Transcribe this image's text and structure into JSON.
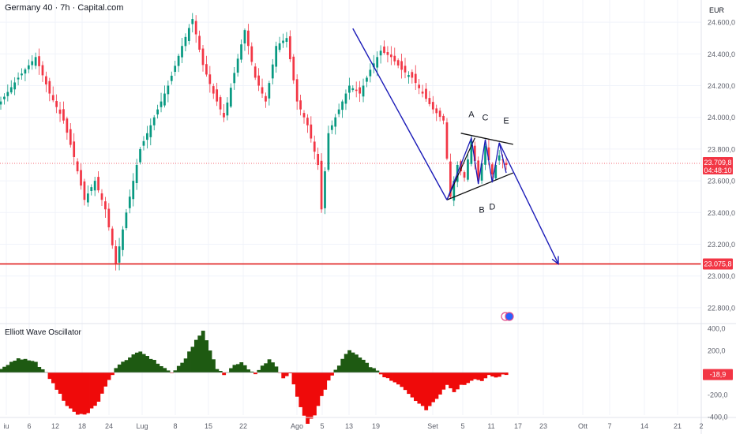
{
  "header": {
    "symbol_title": "Germany 40 · 7h · Capital.com"
  },
  "colors": {
    "up": "#089981",
    "down": "#f23645",
    "grid": "#f0f3fa",
    "text": "#131722",
    "axis_text": "#5d606b",
    "drawing": "#1c1cb8",
    "support": "#e01e1e",
    "osc_pos": "#1e5a12",
    "osc_neg": "#ef0a0a",
    "price_tag": "#f23645"
  },
  "chart_data": [
    {
      "type": "candlestick",
      "currency_label": "EUR",
      "y_ticks": [
        "24.600,0",
        "24.400,0",
        "24.200,0",
        "24.000,0",
        "23.800,0",
        "23.600,0",
        "23.400,0",
        "23.200,0",
        "23.000,0",
        "22.800,0"
      ],
      "y_tick_values": [
        24600,
        24400,
        24200,
        24000,
        23800,
        23600,
        23400,
        23200,
        23000,
        22800
      ],
      "ylim": [
        22710,
        24700
      ],
      "x_ticks": [
        "iu",
        "6",
        "12",
        "18",
        "24",
        "Lug",
        "8",
        "15",
        "22",
        "Ago",
        "5",
        "13",
        "19",
        "Set",
        "5",
        "11",
        "17",
        "23",
        "Ott",
        "7",
        "14",
        "21",
        "2"
      ],
      "last_price": {
        "value": 23709.8,
        "label": "23.709,8",
        "countdown": "04:48:10"
      },
      "support_level": {
        "value": 23075.8,
        "label": "23.075,8"
      },
      "wave_labels": [
        "A",
        "B",
        "C",
        "D",
        "E"
      ],
      "price_path_keypoints": [
        [
          0,
          24100
        ],
        [
          5,
          24250
        ],
        [
          10,
          24380
        ],
        [
          14,
          24150
        ],
        [
          18,
          23980
        ],
        [
          21,
          23750
        ],
        [
          24,
          23480
        ],
        [
          27,
          23600
        ],
        [
          30,
          23420
        ],
        [
          33,
          23080
        ],
        [
          36,
          23400
        ],
        [
          40,
          23800
        ],
        [
          44,
          24000
        ],
        [
          48,
          24200
        ],
        [
          52,
          24450
        ],
        [
          55,
          24620
        ],
        [
          58,
          24330
        ],
        [
          61,
          24150
        ],
        [
          64,
          24000
        ],
        [
          67,
          24280
        ],
        [
          70,
          24550
        ],
        [
          73,
          24250
        ],
        [
          76,
          24100
        ],
        [
          79,
          24450
        ],
        [
          82,
          24500
        ],
        [
          85,
          24100
        ],
        [
          88,
          23950
        ],
        [
          91,
          23700
        ],
        [
          92,
          23420
        ],
        [
          94,
          23900
        ],
        [
          97,
          24050
        ],
        [
          100,
          24200
        ],
        [
          103,
          24150
        ],
        [
          106,
          24300
        ],
        [
          109,
          24420
        ],
        [
          112,
          24380
        ],
        [
          115,
          24300
        ],
        [
          118,
          24250
        ],
        [
          121,
          24150
        ],
        [
          124,
          24050
        ],
        [
          127,
          23980
        ],
        [
          129,
          23500
        ],
        [
          131,
          23700
        ],
        [
          133,
          23620
        ],
        [
          135,
          23850
        ],
        [
          137,
          23600
        ],
        [
          139,
          23820
        ],
        [
          141,
          23640
        ],
        [
          143,
          23760
        ],
        [
          145,
          23700
        ]
      ],
      "candles_count": 146
    },
    {
      "type": "area",
      "title": "Elliott Wave Oscillator",
      "y_ticks": [
        "400,0",
        "200,0",
        "-200,0",
        "-400,0"
      ],
      "y_tick_values": [
        400,
        200,
        -200,
        -400
      ],
      "ylim": [
        -460,
        460
      ],
      "last_value": {
        "value": -18.9,
        "label": "-18,9"
      },
      "values_keypoints": [
        [
          0,
          30
        ],
        [
          5,
          130
        ],
        [
          10,
          90
        ],
        [
          13,
          -5
        ],
        [
          16,
          -150
        ],
        [
          19,
          -300
        ],
        [
          22,
          -380
        ],
        [
          25,
          -370
        ],
        [
          28,
          -260
        ],
        [
          31,
          -70
        ],
        [
          33,
          40
        ],
        [
          36,
          120
        ],
        [
          40,
          190
        ],
        [
          43,
          130
        ],
        [
          46,
          60
        ],
        [
          49,
          -5
        ],
        [
          52,
          80
        ],
        [
          55,
          240
        ],
        [
          58,
          380
        ],
        [
          60,
          200
        ],
        [
          62,
          40
        ],
        [
          64,
          -20
        ],
        [
          67,
          60
        ],
        [
          69,
          100
        ],
        [
          71,
          30
        ],
        [
          73,
          -20
        ],
        [
          75,
          60
        ],
        [
          77,
          120
        ],
        [
          79,
          60
        ],
        [
          81,
          -60
        ],
        [
          83,
          -10
        ],
        [
          86,
          -320
        ],
        [
          88,
          -460
        ],
        [
          90,
          -380
        ],
        [
          92,
          -220
        ],
        [
          94,
          -80
        ],
        [
          96,
          20
        ],
        [
          98,
          120
        ],
        [
          100,
          200
        ],
        [
          102,
          160
        ],
        [
          105,
          80
        ],
        [
          108,
          10
        ],
        [
          111,
          -60
        ],
        [
          114,
          -110
        ],
        [
          116,
          -160
        ],
        [
          118,
          -220
        ],
        [
          120,
          -280
        ],
        [
          122,
          -340
        ],
        [
          124,
          -260
        ],
        [
          126,
          -200
        ],
        [
          128,
          -110
        ],
        [
          130,
          -170
        ],
        [
          132,
          -120
        ],
        [
          134,
          -90
        ],
        [
          136,
          -60
        ],
        [
          138,
          -70
        ],
        [
          140,
          -30
        ],
        [
          142,
          -40
        ],
        [
          145,
          -19
        ]
      ]
    }
  ]
}
